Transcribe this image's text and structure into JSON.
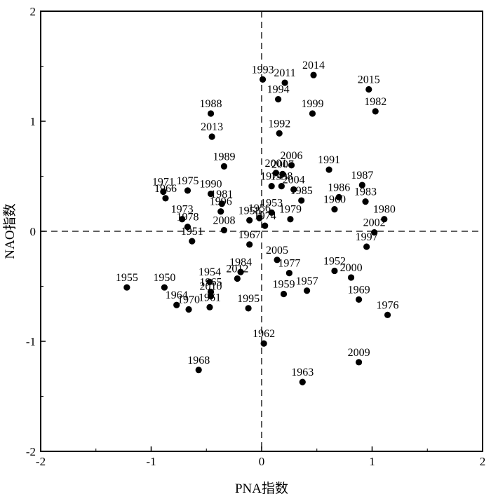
{
  "chart_data": {
    "type": "scatter",
    "xlabel": "PNA指数",
    "ylabel": "NAO指数",
    "xlim": [
      -2,
      2
    ],
    "ylim": [
      -2,
      2
    ],
    "xticks": [
      "-2",
      "-1",
      "0",
      "1",
      "2"
    ],
    "yticks": [
      "-2",
      "-1",
      "0",
      "1",
      "2"
    ],
    "reference_lines": [
      "x=0 dashed",
      "y=0 dashed"
    ],
    "grid": false,
    "point_color": "#000000",
    "points": [
      {
        "label": "1993",
        "x": 0.01,
        "y": 1.38
      },
      {
        "label": "2011",
        "x": 0.21,
        "y": 1.35
      },
      {
        "label": "2014",
        "x": 0.47,
        "y": 1.42
      },
      {
        "label": "1994",
        "x": 0.15,
        "y": 1.2
      },
      {
        "label": "2015",
        "x": 0.97,
        "y": 1.29
      },
      {
        "label": "1982",
        "x": 1.03,
        "y": 1.09
      },
      {
        "label": "1988",
        "x": -0.46,
        "y": 1.07
      },
      {
        "label": "1999",
        "x": 0.46,
        "y": 1.07
      },
      {
        "label": "1992",
        "x": 0.16,
        "y": 0.89
      },
      {
        "label": "2013",
        "x": -0.45,
        "y": 0.86
      },
      {
        "label": "1989",
        "x": -0.34,
        "y": 0.59
      },
      {
        "label": "2006",
        "x": 0.27,
        "y": 0.6
      },
      {
        "label": "1991",
        "x": 0.61,
        "y": 0.56
      },
      {
        "label": "2001",
        "x": 0.13,
        "y": 0.53
      },
      {
        "label": "2007",
        "x": 0.19,
        "y": 0.52
      },
      {
        "label": "1974",
        "x": 0.09,
        "y": 0.41
      },
      {
        "label": "1998",
        "x": 0.18,
        "y": 0.41
      },
      {
        "label": "2004",
        "x": 0.29,
        "y": 0.38
      },
      {
        "label": "1985",
        "x": 0.36,
        "y": 0.28
      },
      {
        "label": "1987",
        "x": 0.91,
        "y": 0.42
      },
      {
        "label": "1986",
        "x": 0.7,
        "y": 0.31
      },
      {
        "label": "1983",
        "x": 0.94,
        "y": 0.27
      },
      {
        "label": "1960",
        "x": 0.66,
        "y": 0.2
      },
      {
        "label": "1980",
        "x": 1.11,
        "y": 0.11
      },
      {
        "label": "2002",
        "x": 1.02,
        "y": -0.01
      },
      {
        "label": "1997",
        "x": 0.95,
        "y": -0.14
      },
      {
        "label": "1971",
        "x": -0.89,
        "y": 0.36
      },
      {
        "label": "1975",
        "x": -0.67,
        "y": 0.37
      },
      {
        "label": "1966",
        "x": -0.87,
        "y": 0.3
      },
      {
        "label": "1990",
        "x": -0.46,
        "y": 0.34
      },
      {
        "label": "1981",
        "x": -0.36,
        "y": 0.25
      },
      {
        "label": "1996",
        "x": -0.37,
        "y": 0.18
      },
      {
        "label": "1973",
        "x": -0.72,
        "y": 0.11
      },
      {
        "label": "1978",
        "x": -0.67,
        "y": 0.04
      },
      {
        "label": "2008",
        "x": -0.34,
        "y": 0.01
      },
      {
        "label": "1958",
        "x": -0.11,
        "y": 0.1
      },
      {
        "label": "1956",
        "x": -0.02,
        "y": 0.12
      },
      {
        "label": "1953",
        "x": 0.09,
        "y": 0.17
      },
      {
        "label": "1979",
        "x": 0.26,
        "y": 0.11
      },
      {
        "label": "1974b",
        "x": 0.03,
        "y": 0.05
      },
      {
        "label": "1951",
        "x": -0.63,
        "y": -0.09
      },
      {
        "label": "1967",
        "x": -0.11,
        "y": -0.12
      },
      {
        "label": "2005",
        "x": 0.14,
        "y": -0.26
      },
      {
        "label": "1977",
        "x": 0.25,
        "y": -0.38
      },
      {
        "label": "1952",
        "x": 0.66,
        "y": -0.36
      },
      {
        "label": "2000",
        "x": 0.81,
        "y": -0.42
      },
      {
        "label": "1969",
        "x": 0.88,
        "y": -0.62
      },
      {
        "label": "1976",
        "x": 1.14,
        "y": -0.76
      },
      {
        "label": "1955",
        "x": -1.22,
        "y": -0.51
      },
      {
        "label": "1950",
        "x": -0.88,
        "y": -0.51
      },
      {
        "label": "1954",
        "x": -0.47,
        "y": -0.46
      },
      {
        "label": "1984",
        "x": -0.19,
        "y": -0.37
      },
      {
        "label": "2012",
        "x": -0.22,
        "y": -0.43
      },
      {
        "label": "1965",
        "x": -0.46,
        "y": -0.55
      },
      {
        "label": "2010",
        "x": -0.46,
        "y": -0.59
      },
      {
        "label": "1961",
        "x": -0.47,
        "y": -0.69
      },
      {
        "label": "1964",
        "x": -0.77,
        "y": -0.67
      },
      {
        "label": "1970",
        "x": -0.66,
        "y": -0.71
      },
      {
        "label": "1995",
        "x": -0.12,
        "y": -0.7
      },
      {
        "label": "1959",
        "x": 0.2,
        "y": -0.57
      },
      {
        "label": "1957",
        "x": 0.41,
        "y": -0.54
      },
      {
        "label": "1962",
        "x": 0.02,
        "y": -1.02
      },
      {
        "label": "2009",
        "x": 0.88,
        "y": -1.19
      },
      {
        "label": "1968",
        "x": -0.57,
        "y": -1.26
      },
      {
        "label": "1963",
        "x": 0.37,
        "y": -1.37
      }
    ]
  }
}
